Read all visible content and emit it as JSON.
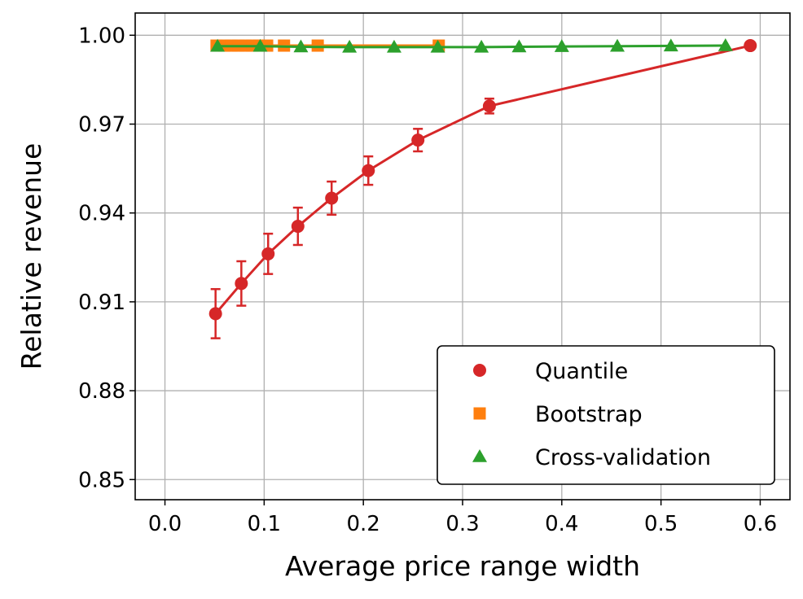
{
  "chart_data": {
    "type": "line",
    "title": "",
    "xlabel": "Average price range width",
    "ylabel": "Relative revenue",
    "xlim": [
      -0.03,
      0.63
    ],
    "ylim": [
      0.8432,
      1.0075
    ],
    "xticks": [
      0.0,
      0.1,
      0.2,
      0.3,
      0.4,
      0.5,
      0.6
    ],
    "xtick_labels": [
      "0.0",
      "0.1",
      "0.2",
      "0.3",
      "0.4",
      "0.5",
      "0.6"
    ],
    "yticks": [
      0.85,
      0.88,
      0.91,
      0.94,
      0.97,
      1.0
    ],
    "ytick_labels": [
      "0.85",
      "0.88",
      "0.91",
      "0.94",
      "0.97",
      "1.00"
    ],
    "grid": true,
    "legend_position": "lower-right",
    "series": [
      {
        "name": "Quantile",
        "color": "#d62728",
        "marker": "circle",
        "line": true,
        "x": [
          0.051,
          0.077,
          0.104,
          0.134,
          0.168,
          0.205,
          0.255,
          0.327,
          0.59
        ],
        "y": [
          0.906,
          0.9162,
          0.9262,
          0.9355,
          0.945,
          0.9543,
          0.9646,
          0.9761,
          0.9965
        ],
        "yerr": [
          0.0083,
          0.0075,
          0.0068,
          0.0063,
          0.0056,
          0.0048,
          0.0038,
          0.0025,
          0.0
        ]
      },
      {
        "name": "Bootstrap",
        "color": "#ff7f0e",
        "marker": "square",
        "line": true,
        "x": [
          0.052,
          0.06,
          0.067,
          0.074,
          0.081,
          0.088,
          0.095,
          0.103,
          0.12,
          0.154,
          0.276
        ],
        "y": [
          0.9965,
          0.9965,
          0.9965,
          0.9965,
          0.9965,
          0.9965,
          0.9965,
          0.9965,
          0.9965,
          0.9965,
          0.9965
        ]
      },
      {
        "name": "Cross-validation",
        "color": "#2ca02c",
        "marker": "triangle",
        "line": true,
        "x": [
          0.053,
          0.096,
          0.137,
          0.186,
          0.231,
          0.275,
          0.319,
          0.357,
          0.4,
          0.456,
          0.51,
          0.565
        ],
        "y": [
          0.9963,
          0.9963,
          0.9961,
          0.996,
          0.996,
          0.996,
          0.996,
          0.9961,
          0.9962,
          0.9963,
          0.9964,
          0.9965
        ]
      }
    ]
  }
}
